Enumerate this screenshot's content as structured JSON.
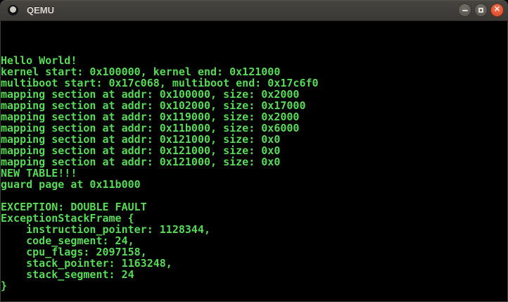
{
  "window": {
    "title": "QEMU",
    "controls": {
      "minimize_label": "minimize",
      "maximize_label": "maximize",
      "close_label": "close",
      "close_icon": "✕"
    },
    "titlebar_color": "#403e3a",
    "close_button_color": "#e55635"
  },
  "terminal": {
    "background": "#000000",
    "text_color": "#57db57",
    "lines": [
      "",
      "",
      "",
      "Hello World!",
      "kernel start: 0x100000, kernel end: 0x121000",
      "multiboot start: 0x17c068, multiboot end: 0x17c6f0",
      "mapping section at addr: 0x100000, size: 0x2000",
      "mapping section at addr: 0x102000, size: 0x17000",
      "mapping section at addr: 0x119000, size: 0x2000",
      "mapping section at addr: 0x11b000, size: 0x6000",
      "mapping section at addr: 0x121000, size: 0x0",
      "mapping section at addr: 0x121000, size: 0x0",
      "mapping section at addr: 0x121000, size: 0x0",
      "NEW TABLE!!!",
      "guard page at 0x11b000",
      "",
      "EXCEPTION: DOUBLE FAULT",
      "ExceptionStackFrame {",
      "    instruction_pointer: 1128344,",
      "    code_segment: 24,",
      "    cpu_flags: 2097158,",
      "    stack_pointer: 1163248,",
      "    stack_segment: 24",
      "}",
      ""
    ]
  }
}
